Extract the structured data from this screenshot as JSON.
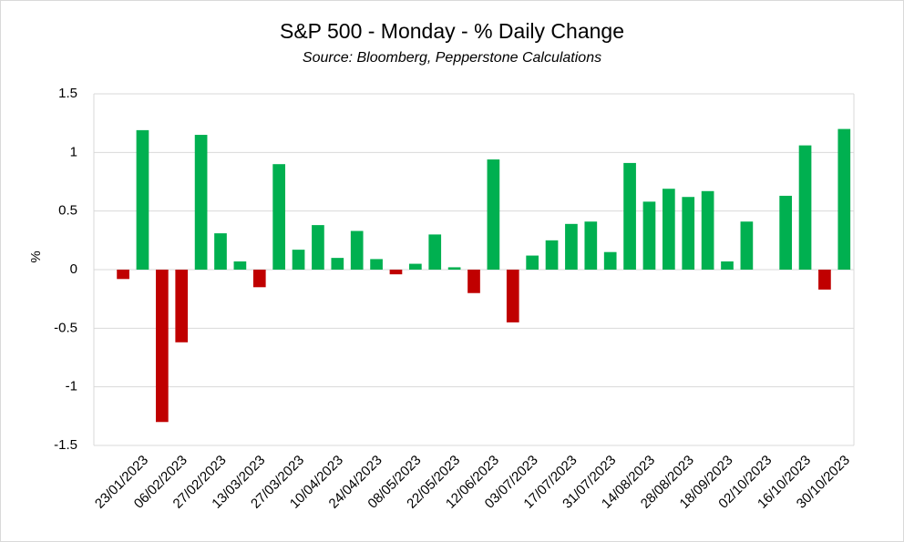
{
  "chart_data": {
    "type": "bar",
    "title": "S&P 500 - Monday - % Daily Change",
    "subtitle": "Source: Bloomberg, Pepperstone Calculations",
    "y_label": "%",
    "categories": [
      null,
      null,
      "23/01/2023",
      null,
      "06/02/2023",
      null,
      "27/02/2023",
      null,
      "13/03/2023",
      null,
      "27/03/2023",
      null,
      "10/04/2023",
      null,
      "24/04/2023",
      null,
      "08/05/2023",
      null,
      "22/05/2023",
      null,
      "12/06/2023",
      null,
      "03/07/2023",
      null,
      "17/07/2023",
      null,
      "31/07/2023",
      null,
      "14/08/2023",
      null,
      "28/08/2023",
      null,
      "18/09/2023",
      null,
      "02/10/2023",
      null,
      "16/10/2023",
      null,
      "30/10/2023"
    ],
    "values": [
      0,
      -0.08,
      1.19,
      -1.3,
      -0.62,
      1.15,
      0.31,
      0.07,
      -0.15,
      0.9,
      0.17,
      0.38,
      0.1,
      0.33,
      0.09,
      -0.04,
      0.05,
      0.3,
      0.02,
      -0.2,
      0.94,
      -0.45,
      0.12,
      0.25,
      0.39,
      0.41,
      0.15,
      0.91,
      0.58,
      0.69,
      0.62,
      0.67,
      0.07,
      0.41,
      0,
      0.63,
      1.06,
      -0.17,
      1.2
    ],
    "color_positive": "#00b050",
    "color_negative": "#c00000",
    "ylim": [
      -1.5,
      1.5
    ],
    "yticks": [
      -1.5,
      -1,
      -0.5,
      0,
      0.5,
      1,
      1.5
    ],
    "grid": true
  }
}
